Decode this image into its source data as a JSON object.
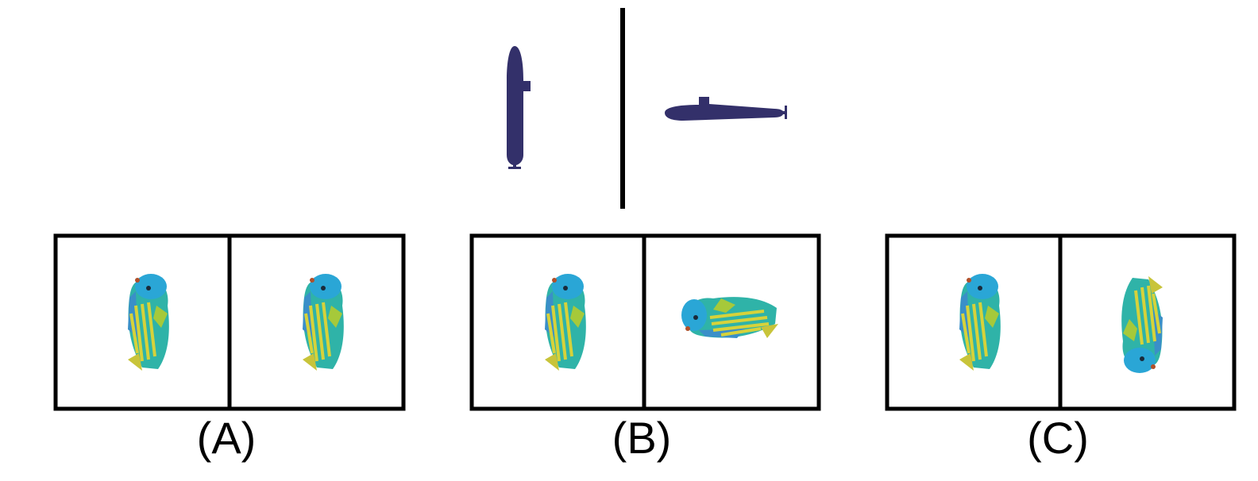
{
  "options": [
    {
      "label": "(A)"
    },
    {
      "label": "(B)"
    },
    {
      "label": "(C)"
    }
  ]
}
